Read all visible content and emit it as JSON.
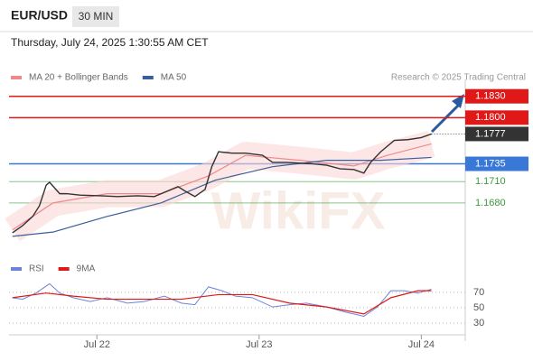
{
  "header": {
    "symbol": "EUR/USD",
    "timeframe": "30 MIN",
    "timestamp": "Thursday, July 24, 2025 1:30:55 AM CET"
  },
  "credit": "Research © 2025 Trading Central",
  "watermark": "WikiFX",
  "chart_data": [
    {
      "type": "line",
      "xlim": [
        -13,
        54.5
      ],
      "ylim": [
        1.161,
        1.1855
      ],
      "series": [
        {
          "name": "MA 20 + Bollinger Bands",
          "color": "#f08a8a",
          "width": 1.2,
          "x": [
            -12.5,
            -6.5,
            1.5,
            9.5,
            16.5,
            22,
            30,
            38,
            43,
            49.5
          ],
          "values": [
            1.1642,
            1.168,
            1.1693,
            1.1693,
            1.1718,
            1.1747,
            1.174,
            1.1732,
            1.1747,
            1.1763
          ]
        },
        {
          "name": "MA 50",
          "color": "#3a5f9a",
          "width": 1.2,
          "x": [
            -12.5,
            -6.5,
            1.5,
            9.5,
            17.5,
            26,
            34,
            42,
            49.5
          ],
          "values": [
            1.1633,
            1.1639,
            1.1661,
            1.168,
            1.1712,
            1.1731,
            1.174,
            1.174,
            1.1744
          ]
        },
        {
          "color": "#333333",
          "width": 1.4,
          "x": [
            -12.5,
            -11,
            -9.5,
            -8.5,
            -7.5,
            -7,
            -5.5,
            -4.5,
            -2.5,
            0.5,
            3,
            6,
            8.5,
            10.5,
            12,
            13,
            14.5,
            16,
            17,
            18,
            20,
            22,
            24.5,
            26,
            28,
            30,
            32,
            34,
            36,
            38,
            39.5,
            40.5,
            42,
            44,
            46,
            48,
            49.5
          ],
          "values": [
            1.1638,
            1.1648,
            1.1661,
            1.1676,
            1.1705,
            1.1709,
            1.1693,
            1.1693,
            1.1691,
            1.169,
            1.1689,
            1.169,
            1.1689,
            1.1697,
            1.1703,
            1.1697,
            1.1689,
            1.1699,
            1.1731,
            1.1752,
            1.175,
            1.175,
            1.1747,
            1.1737,
            1.1737,
            1.1736,
            1.1735,
            1.1733,
            1.1728,
            1.1727,
            1.1722,
            1.1737,
            1.1752,
            1.1768,
            1.1769,
            1.1772,
            1.1777
          ]
        }
      ],
      "levels": [
        {
          "value": 1.183,
          "label": "1.1830",
          "color": "#e01818",
          "style": "box"
        },
        {
          "value": 1.18,
          "label": "1.1800",
          "color": "#e01818",
          "style": "box"
        },
        {
          "value": 1.1777,
          "label": "1.1777",
          "color": "#333333",
          "style": "last"
        },
        {
          "value": 1.1735,
          "label": "1.1735",
          "color": "#3a78d8",
          "style": "box"
        },
        {
          "value": 1.171,
          "label": "1.1710",
          "color": "#3d9a3d",
          "style": "text"
        },
        {
          "value": 1.168,
          "label": "1.1680",
          "color": "#3d9a3d",
          "style": "text"
        }
      ]
    },
    {
      "type": "line",
      "xlim": [
        -13,
        54.5
      ],
      "ylim": [
        15,
        85
      ],
      "yticks": [
        30,
        50,
        70
      ],
      "xticks": [
        {
          "value": 0,
          "label": "Jul 22"
        },
        {
          "value": 24,
          "label": "Jul 23"
        },
        {
          "value": 48,
          "label": "Jul 24"
        }
      ],
      "series": [
        {
          "name": "RSI",
          "color": "#6b84d8",
          "width": 1,
          "x": [
            -12.5,
            -11,
            -9,
            -7,
            -5.5,
            -3.5,
            -1,
            1.5,
            4.5,
            7,
            10,
            12.5,
            14.5,
            16.5,
            18.5,
            20.5,
            23,
            26,
            28.5,
            31,
            34,
            36.5,
            39.5,
            41.5,
            43.5,
            45.5,
            47.5,
            49.5
          ],
          "values": [
            63,
            61,
            69,
            81,
            69,
            63,
            58,
            63,
            56,
            58,
            65,
            56,
            54,
            77,
            72,
            65,
            63,
            51,
            54,
            56,
            51,
            45,
            39,
            51,
            72,
            72,
            69,
            74
          ]
        },
        {
          "name": "9MA",
          "color": "#e01818",
          "width": 1.2,
          "x": [
            -12.5,
            -7.5,
            -3.5,
            1.5,
            7,
            12.5,
            18,
            23,
            28.5,
            34,
            39.5,
            43.5,
            47.5,
            49.5
          ],
          "values": [
            63,
            69,
            65,
            61,
            61,
            61,
            67,
            67,
            56,
            51,
            42,
            63,
            72,
            72
          ]
        }
      ]
    }
  ]
}
